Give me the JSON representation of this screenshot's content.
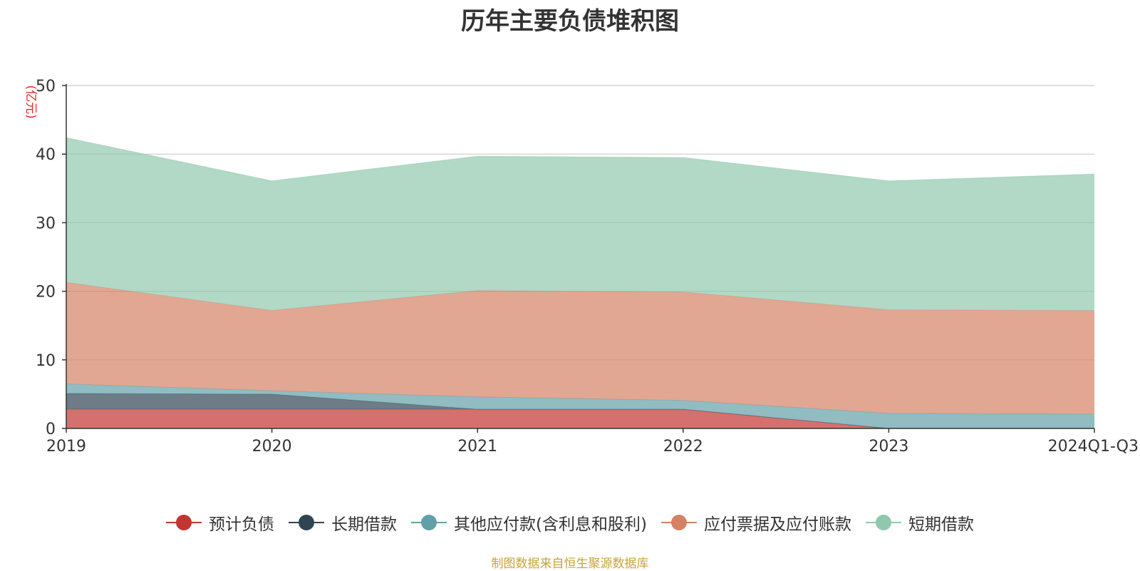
{
  "chart_data": {
    "type": "area",
    "stacked": true,
    "title": "历年主要负债堆积图",
    "ylabel": "(亿元)",
    "xlabel": "",
    "ylim": [
      0,
      50
    ],
    "yticks": [
      0,
      10,
      20,
      30,
      40,
      50
    ],
    "grid": true,
    "legend_position": "bottom",
    "categories": [
      "2019",
      "2020",
      "2021",
      "2022",
      "2023",
      "2024Q1-Q3"
    ],
    "series": [
      {
        "name": "预计负债",
        "color": "#c23531",
        "values": [
          2.8,
          2.8,
          2.8,
          2.8,
          0.0,
          0.0
        ]
      },
      {
        "name": "长期借款",
        "color": "#2f4554",
        "values": [
          2.3,
          2.2,
          0.0,
          0.0,
          0.0,
          0.0
        ]
      },
      {
        "name": "其他应付款(含利息和股利)",
        "color": "#61a0a8",
        "values": [
          1.4,
          0.5,
          1.8,
          1.3,
          2.2,
          2.1
        ]
      },
      {
        "name": "应付票据及应付账款",
        "color": "#d48265",
        "values": [
          14.8,
          11.7,
          15.5,
          15.8,
          15.1,
          15.1
        ]
      },
      {
        "name": "短期借款",
        "color": "#91c7ae",
        "values": [
          21.1,
          18.9,
          19.6,
          19.6,
          18.8,
          19.9
        ]
      }
    ]
  },
  "source_note": "制图数据来自恒生聚源数据库",
  "colors": {
    "title": "#333333",
    "ylabel": "#e8262a",
    "source": "#c8a33a",
    "grid": "#cccccc"
  }
}
